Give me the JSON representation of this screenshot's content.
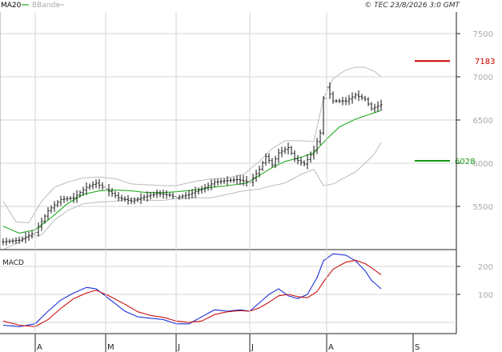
{
  "header": {
    "legend_ma": "MA20",
    "legend_bb": "BBands",
    "copyright": "© TEC 23/8/2026 3:0 GMT"
  },
  "colors": {
    "ma": "#22aa22",
    "bands": "#bbbbbb",
    "price": "#111111",
    "resistance": "#cc0000",
    "support": "#119911",
    "macd": "#1b2fd6",
    "signal": "#cc1111",
    "grid": "#d6d6d6"
  },
  "chart_data": [
    {
      "type": "candlestick",
      "name": "price",
      "x_labels": [
        "A",
        "M",
        "J",
        "J",
        "A",
        "S"
      ],
      "y_ticks": [
        "5500",
        "6000",
        "6500",
        "7000",
        "7500"
      ],
      "ylim": [
        5000,
        7750
      ],
      "n_bars": 128,
      "month_start_index": [
        10,
        32,
        54,
        77,
        101,
        128
      ],
      "close_anchors": [
        [
          0,
          5090
        ],
        [
          5,
          5110
        ],
        [
          10,
          5200
        ],
        [
          14,
          5450
        ],
        [
          18,
          5580
        ],
        [
          22,
          5600
        ],
        [
          26,
          5720
        ],
        [
          29,
          5770
        ],
        [
          32,
          5700
        ],
        [
          36,
          5600
        ],
        [
          40,
          5560
        ],
        [
          44,
          5610
        ],
        [
          48,
          5650
        ],
        [
          52,
          5630
        ],
        [
          54,
          5600
        ],
        [
          58,
          5640
        ],
        [
          62,
          5700
        ],
        [
          66,
          5780
        ],
        [
          70,
          5800
        ],
        [
          73,
          5810
        ],
        [
          77,
          5780
        ],
        [
          80,
          5930
        ],
        [
          82,
          6080
        ],
        [
          84,
          5980
        ],
        [
          86,
          6120
        ],
        [
          89,
          6180
        ],
        [
          91,
          6050
        ],
        [
          94,
          5990
        ],
        [
          97,
          6150
        ],
        [
          99,
          6350
        ],
        [
          100,
          6750
        ],
        [
          101,
          6880
        ],
        [
          103,
          6720
        ],
        [
          107,
          6720
        ],
        [
          110,
          6790
        ],
        [
          113,
          6740
        ],
        [
          115,
          6630
        ],
        [
          118,
          6680
        ]
      ],
      "ma20_anchors": [
        [
          0,
          5270
        ],
        [
          5,
          5190
        ],
        [
          10,
          5230
        ],
        [
          15,
          5370
        ],
        [
          20,
          5530
        ],
        [
          25,
          5640
        ],
        [
          30,
          5680
        ],
        [
          35,
          5690
        ],
        [
          40,
          5680
        ],
        [
          45,
          5660
        ],
        [
          50,
          5660
        ],
        [
          54,
          5670
        ],
        [
          60,
          5690
        ],
        [
          65,
          5720
        ],
        [
          70,
          5740
        ],
        [
          76,
          5770
        ],
        [
          80,
          5860
        ],
        [
          84,
          5950
        ],
        [
          88,
          6020
        ],
        [
          93,
          6070
        ],
        [
          97,
          6120
        ],
        [
          101,
          6280
        ],
        [
          105,
          6420
        ],
        [
          110,
          6510
        ],
        [
          114,
          6560
        ],
        [
          118,
          6610
        ]
      ],
      "upper_band_anchors": [
        [
          0,
          5560
        ],
        [
          4,
          5320
        ],
        [
          8,
          5310
        ],
        [
          12,
          5560
        ],
        [
          16,
          5720
        ],
        [
          20,
          5780
        ],
        [
          25,
          5830
        ],
        [
          30,
          5840
        ],
        [
          35,
          5820
        ],
        [
          40,
          5760
        ],
        [
          45,
          5750
        ],
        [
          50,
          5740
        ],
        [
          54,
          5740
        ],
        [
          60,
          5790
        ],
        [
          65,
          5820
        ],
        [
          70,
          5830
        ],
        [
          75,
          5870
        ],
        [
          80,
          6020
        ],
        [
          84,
          6170
        ],
        [
          88,
          6260
        ],
        [
          93,
          6260
        ],
        [
          97,
          6250
        ],
        [
          100,
          6750
        ],
        [
          103,
          6980
        ],
        [
          107,
          7080
        ],
        [
          110,
          7110
        ],
        [
          113,
          7110
        ],
        [
          116,
          7060
        ],
        [
          118,
          7000
        ]
      ],
      "lower_band_anchors": [
        [
          0,
          5000
        ],
        [
          4,
          5070
        ],
        [
          8,
          5150
        ],
        [
          12,
          5170
        ],
        [
          16,
          5340
        ],
        [
          20,
          5450
        ],
        [
          25,
          5530
        ],
        [
          30,
          5550
        ],
        [
          35,
          5560
        ],
        [
          40,
          5590
        ],
        [
          45,
          5570
        ],
        [
          50,
          5570
        ],
        [
          54,
          5590
        ],
        [
          60,
          5600
        ],
        [
          65,
          5600
        ],
        [
          70,
          5640
        ],
        [
          75,
          5680
        ],
        [
          80,
          5700
        ],
        [
          84,
          5740
        ],
        [
          88,
          5770
        ],
        [
          93,
          5870
        ],
        [
          97,
          5930
        ],
        [
          100,
          5740
        ],
        [
          103,
          5760
        ],
        [
          107,
          5840
        ],
        [
          110,
          5900
        ],
        [
          113,
          6000
        ],
        [
          116,
          6110
        ],
        [
          118,
          6240
        ]
      ],
      "resistance": {
        "value": 7183,
        "label": "7183"
      },
      "support": {
        "value": 6028,
        "label": "6028"
      }
    },
    {
      "type": "line",
      "name": "MACD",
      "label": "MACD",
      "y_ticks": [
        "100",
        "200"
      ],
      "ylim": [
        -40,
        260
      ],
      "macd_anchors": [
        [
          0,
          -10
        ],
        [
          5,
          -15
        ],
        [
          10,
          -5
        ],
        [
          14,
          40
        ],
        [
          18,
          80
        ],
        [
          22,
          105
        ],
        [
          26,
          125
        ],
        [
          29,
          120
        ],
        [
          33,
          85
        ],
        [
          38,
          40
        ],
        [
          42,
          20
        ],
        [
          46,
          15
        ],
        [
          50,
          10
        ],
        [
          54,
          -5
        ],
        [
          58,
          -5
        ],
        [
          62,
          20
        ],
        [
          66,
          45
        ],
        [
          70,
          40
        ],
        [
          74,
          45
        ],
        [
          77,
          40
        ],
        [
          80,
          70
        ],
        [
          83,
          100
        ],
        [
          86,
          120
        ],
        [
          89,
          95
        ],
        [
          92,
          85
        ],
        [
          95,
          100
        ],
        [
          98,
          160
        ],
        [
          100,
          220
        ],
        [
          103,
          245
        ],
        [
          107,
          240
        ],
        [
          110,
          220
        ],
        [
          113,
          185
        ],
        [
          115,
          150
        ],
        [
          118,
          120
        ]
      ],
      "signal_anchors": [
        [
          0,
          5
        ],
        [
          5,
          -10
        ],
        [
          10,
          -15
        ],
        [
          14,
          10
        ],
        [
          18,
          50
        ],
        [
          22,
          85
        ],
        [
          26,
          105
        ],
        [
          29,
          115
        ],
        [
          33,
          95
        ],
        [
          38,
          65
        ],
        [
          42,
          38
        ],
        [
          46,
          25
        ],
        [
          50,
          18
        ],
        [
          54,
          5
        ],
        [
          58,
          0
        ],
        [
          62,
          5
        ],
        [
          66,
          28
        ],
        [
          70,
          38
        ],
        [
          74,
          42
        ],
        [
          77,
          40
        ],
        [
          80,
          52
        ],
        [
          83,
          72
        ],
        [
          86,
          95
        ],
        [
          89,
          100
        ],
        [
          92,
          92
        ],
        [
          95,
          88
        ],
        [
          98,
          110
        ],
        [
          100,
          145
        ],
        [
          103,
          190
        ],
        [
          107,
          215
        ],
        [
          110,
          222
        ],
        [
          113,
          210
        ],
        [
          115,
          195
        ],
        [
          118,
          170
        ]
      ]
    }
  ]
}
